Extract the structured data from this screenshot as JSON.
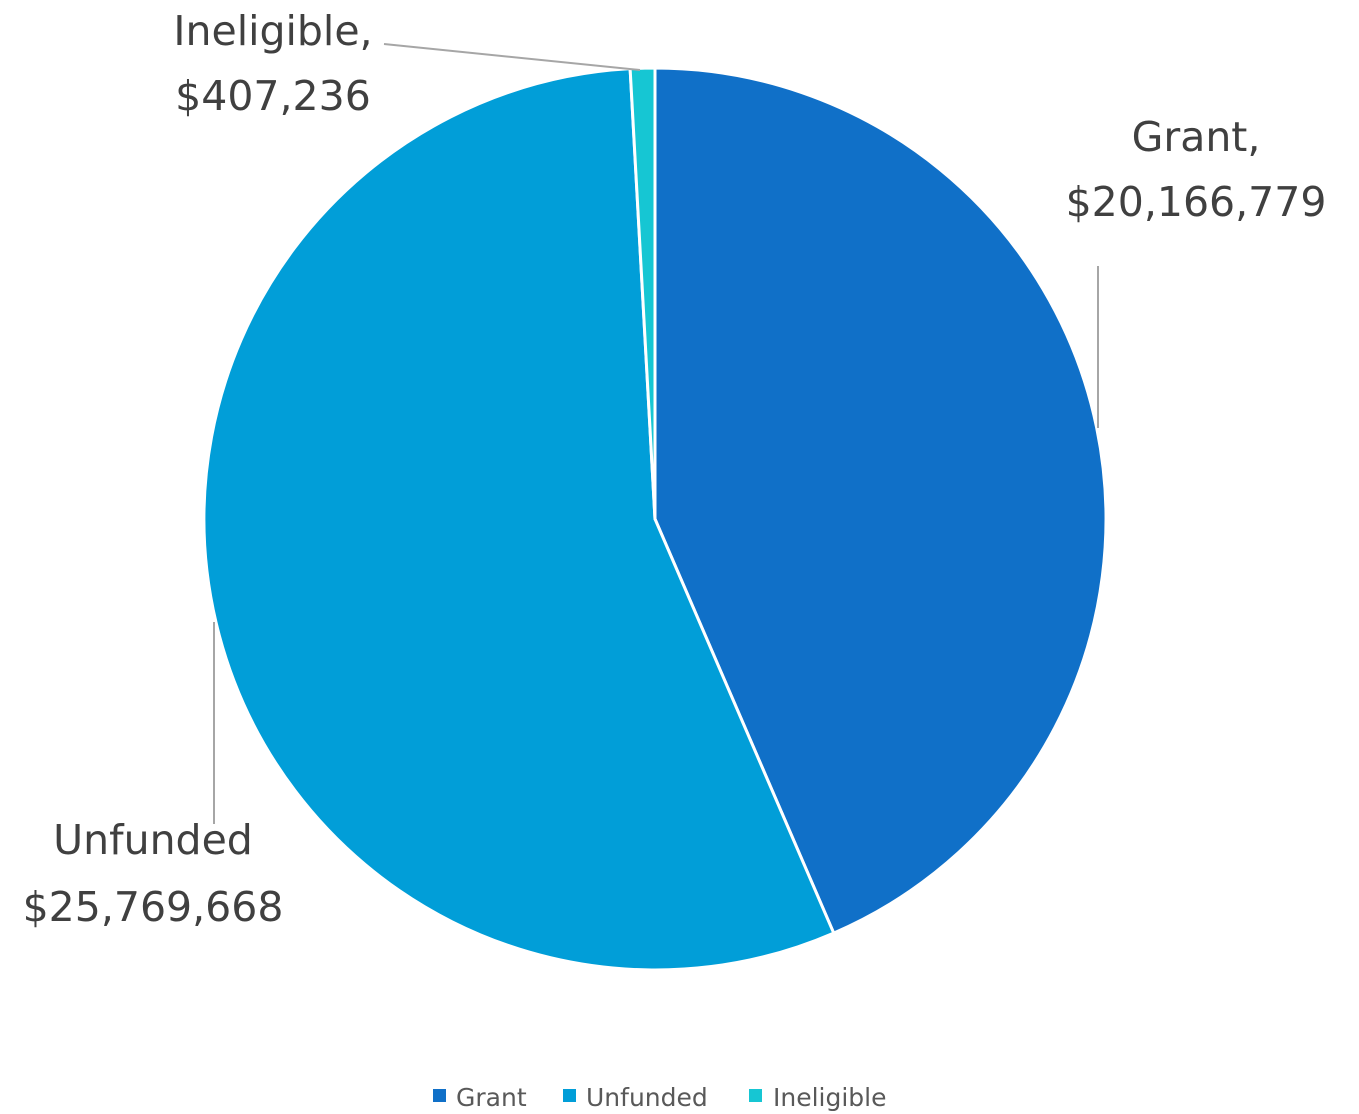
{
  "chart_data": {
    "type": "pie",
    "title": "",
    "start_angle_deg": 0,
    "direction": "clockwise",
    "slices": [
      {
        "name": "Grant",
        "value": 20166779,
        "label_name": "Grant,",
        "label_value": "$20,166,779",
        "color": "#1070c8"
      },
      {
        "name": "Unfunded",
        "value": 25769668,
        "label_name": "Unfunded",
        "label_value": "$25,769,668",
        "color": "#019ed8"
      },
      {
        "name": "Ineligible",
        "value": 407236,
        "label_name": "Ineligible,",
        "label_value": "$407,236",
        "color": "#16c6d3"
      }
    ],
    "legend": {
      "position": "bottom",
      "items": [
        "Grant",
        "Unfunded",
        "Ineligible"
      ]
    },
    "slice_border_color": "#ffffff",
    "label_color": "#404040",
    "leader_color": "#a6a6a6"
  }
}
